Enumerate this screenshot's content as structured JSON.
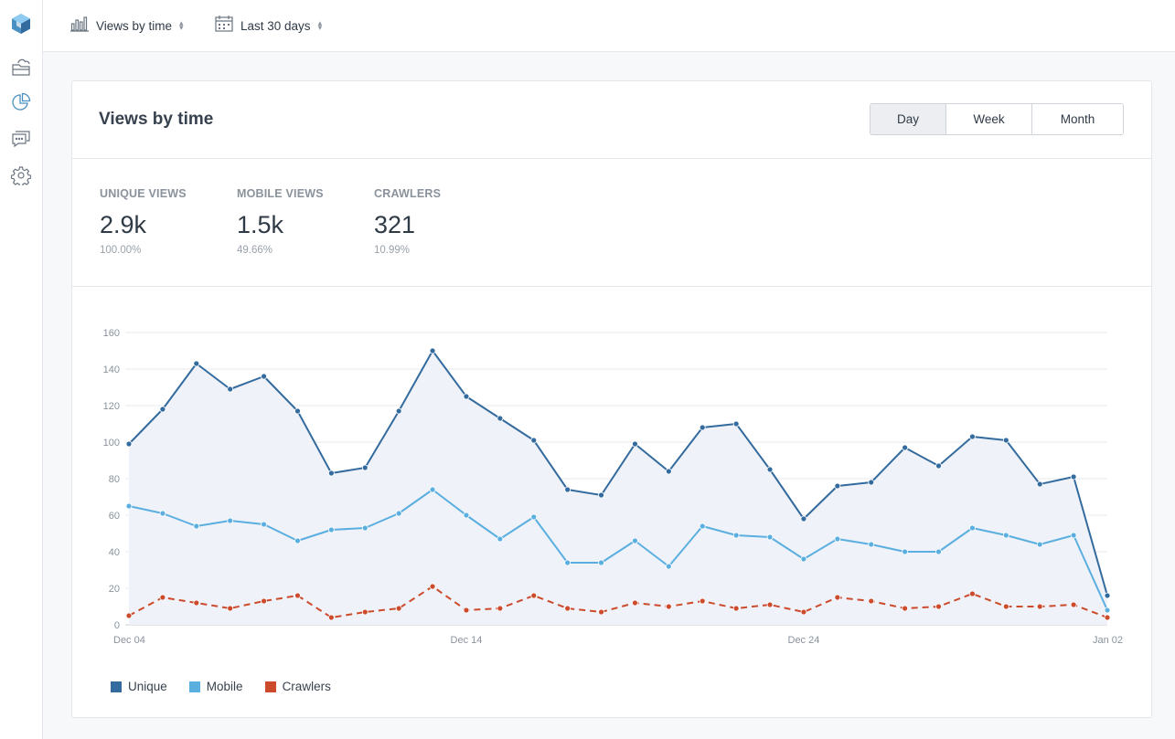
{
  "topbar": {
    "report_selector": {
      "label": "Views by time",
      "icon": "bar-chart-icon"
    },
    "range_selector": {
      "label": "Last 30 days",
      "icon": "calendar-icon"
    }
  },
  "sidebar": {
    "items": [
      {
        "name": "logo",
        "icon": "cube-logo-icon"
      },
      {
        "name": "dashboard",
        "icon": "cloud-folder-icon"
      },
      {
        "name": "analytics",
        "icon": "pie-chart-icon",
        "active": true
      },
      {
        "name": "comments",
        "icon": "chat-icon"
      },
      {
        "name": "settings",
        "icon": "gear-icon"
      }
    ]
  },
  "card": {
    "title": "Views by time",
    "granularity": {
      "options": [
        "Day",
        "Week",
        "Month"
      ],
      "selected": "Day"
    },
    "stats": [
      {
        "label": "UNIQUE VIEWS",
        "value": "2.9k",
        "pct": "100.00%"
      },
      {
        "label": "MOBILE VIEWS",
        "value": "1.5k",
        "pct": "49.66%"
      },
      {
        "label": "CRAWLERS",
        "value": "321",
        "pct": "10.99%"
      }
    ]
  },
  "colors": {
    "unique": "#346b9e",
    "mobile": "#5aafe0",
    "crawlers": "#cc4b2c",
    "area_fill": "#eff2f8",
    "grid": "#e6e8eb",
    "accent": "#4a90c2"
  },
  "chart_data": {
    "type": "line",
    "x": [
      "Dec 04",
      "Dec 05",
      "Dec 06",
      "Dec 07",
      "Dec 08",
      "Dec 09",
      "Dec 10",
      "Dec 11",
      "Dec 12",
      "Dec 13",
      "Dec 14",
      "Dec 15",
      "Dec 16",
      "Dec 17",
      "Dec 18",
      "Dec 19",
      "Dec 20",
      "Dec 21",
      "Dec 22",
      "Dec 23",
      "Dec 24",
      "Dec 25",
      "Dec 26",
      "Dec 27",
      "Dec 28",
      "Dec 29",
      "Dec 30",
      "Dec 31",
      "Jan 01",
      "Jan 02"
    ],
    "x_tick_labels": [
      "Dec 04",
      "Dec 14",
      "Dec 24",
      "Jan 02"
    ],
    "y_ticks": [
      0,
      20,
      40,
      60,
      80,
      100,
      120,
      140,
      160
    ],
    "ylim": [
      0,
      160
    ],
    "grid": true,
    "legend_position": "bottom-left",
    "series": [
      {
        "name": "Unique",
        "style": "solid",
        "fill_area": true,
        "values": [
          99,
          118,
          143,
          129,
          136,
          117,
          83,
          86,
          117,
          150,
          125,
          113,
          101,
          74,
          71,
          99,
          84,
          108,
          110,
          85,
          58,
          76,
          78,
          97,
          87,
          103,
          101,
          77,
          81,
          16
        ]
      },
      {
        "name": "Mobile",
        "style": "solid",
        "fill_area": false,
        "values": [
          65,
          61,
          54,
          57,
          55,
          46,
          52,
          53,
          61,
          74,
          60,
          47,
          59,
          34,
          34,
          46,
          32,
          54,
          49,
          48,
          36,
          47,
          44,
          40,
          40,
          53,
          49,
          44,
          49,
          8
        ]
      },
      {
        "name": "Crawlers",
        "style": "dashed",
        "fill_area": false,
        "values": [
          5,
          15,
          12,
          9,
          13,
          16,
          4,
          7,
          9,
          21,
          8,
          9,
          16,
          9,
          7,
          12,
          10,
          13,
          9,
          11,
          7,
          15,
          13,
          9,
          10,
          17,
          10,
          10,
          11,
          4
        ]
      }
    ]
  }
}
